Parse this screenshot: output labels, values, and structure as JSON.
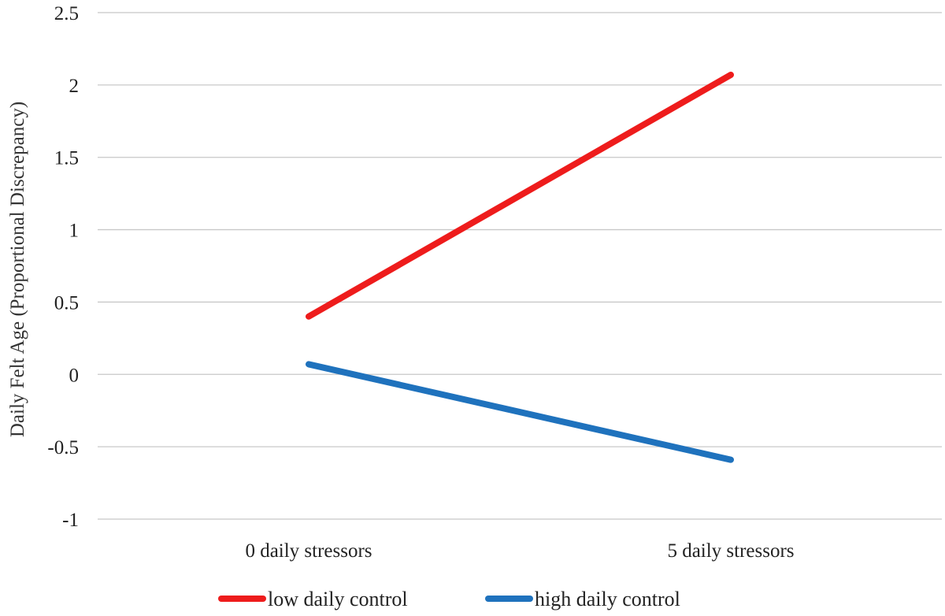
{
  "chart_data": {
    "type": "line",
    "title": "",
    "xlabel": "",
    "ylabel": "Daily Felt Age (Proportional Discrepancy)",
    "categories": [
      "0 daily stressors",
      "5 daily stressors"
    ],
    "ylim": [
      -1,
      2.5
    ],
    "yticks": [
      2.5,
      2,
      1.5,
      1,
      0.5,
      0,
      -0.5,
      -1
    ],
    "ytick_labels": [
      "2.5",
      "2",
      "1.5",
      "1",
      "0.5",
      "0",
      "-0.5",
      "-1"
    ],
    "grid": true,
    "legend_position": "bottom",
    "series": [
      {
        "name": "low daily control",
        "values": [
          0.4,
          2.07
        ],
        "color": "#ee1c1c"
      },
      {
        "name": "high daily control",
        "values": [
          0.07,
          -0.59
        ],
        "color": "#1f72bd"
      }
    ]
  }
}
